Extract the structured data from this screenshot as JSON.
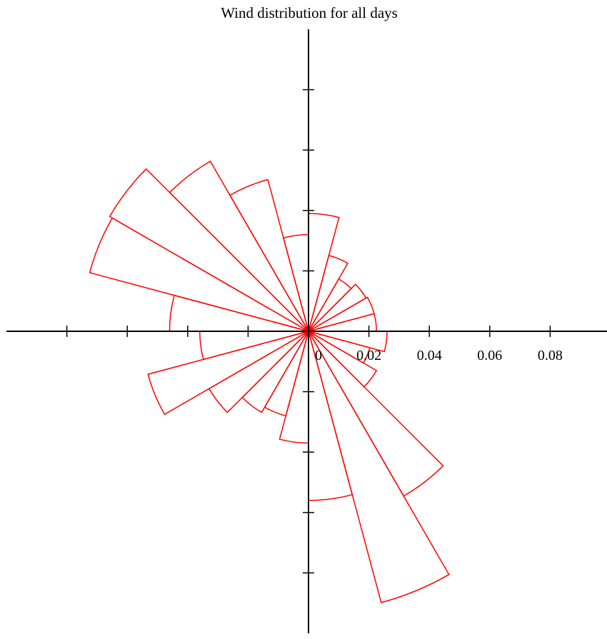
{
  "chart_data": {
    "type": "polar_histogram",
    "title": "Wind distribution for all days",
    "xticks": [
      "0",
      "0.02",
      "0.04",
      "0.06",
      "0.08"
    ],
    "xlim": [
      -0.1,
      0.1
    ],
    "ylim": [
      -0.1,
      0.1
    ],
    "bin_width_deg": 15,
    "bars": [
      {
        "angle_start_deg": 0,
        "angle_end_deg": 15,
        "value": 0.0225
      },
      {
        "angle_start_deg": 15,
        "angle_end_deg": 30,
        "value": 0.0225
      },
      {
        "angle_start_deg": 30,
        "angle_end_deg": 45,
        "value": 0.022
      },
      {
        "angle_start_deg": 45,
        "angle_end_deg": 60,
        "value": 0.02
      },
      {
        "angle_start_deg": 60,
        "angle_end_deg": 75,
        "value": 0.026
      },
      {
        "angle_start_deg": 75,
        "angle_end_deg": 90,
        "value": 0.039
      },
      {
        "angle_start_deg": 90,
        "angle_end_deg": 105,
        "value": 0.032
      },
      {
        "angle_start_deg": 105,
        "angle_end_deg": 120,
        "value": 0.052
      },
      {
        "angle_start_deg": 120,
        "angle_end_deg": 135,
        "value": 0.065
      },
      {
        "angle_start_deg": 135,
        "angle_end_deg": 150,
        "value": 0.076
      },
      {
        "angle_start_deg": 150,
        "angle_end_deg": 165,
        "value": 0.075
      },
      {
        "angle_start_deg": 165,
        "angle_end_deg": 180,
        "value": 0.046
      },
      {
        "angle_start_deg": 180,
        "angle_end_deg": 195,
        "value": 0.036
      },
      {
        "angle_start_deg": 195,
        "angle_end_deg": 210,
        "value": 0.055
      },
      {
        "angle_start_deg": 210,
        "angle_end_deg": 225,
        "value": 0.038
      },
      {
        "angle_start_deg": 225,
        "angle_end_deg": 240,
        "value": 0.031
      },
      {
        "angle_start_deg": 240,
        "angle_end_deg": 255,
        "value": 0.029
      },
      {
        "angle_start_deg": 255,
        "angle_end_deg": 270,
        "value": 0.037
      },
      {
        "angle_start_deg": 270,
        "angle_end_deg": 285,
        "value": 0.056
      },
      {
        "angle_start_deg": 285,
        "angle_end_deg": 300,
        "value": 0.093
      },
      {
        "angle_start_deg": 300,
        "angle_end_deg": 315,
        "value": 0.063
      },
      {
        "angle_start_deg": 315,
        "angle_end_deg": 330,
        "value": 0.026
      },
      {
        "angle_start_deg": 330,
        "angle_end_deg": 345,
        "value": 0.021
      },
      {
        "angle_start_deg": 345,
        "angle_end_deg": 360,
        "value": 0.026
      }
    ],
    "grid": false,
    "colors": {
      "bar_stroke": "#ff0000",
      "axis": "#000000"
    }
  }
}
